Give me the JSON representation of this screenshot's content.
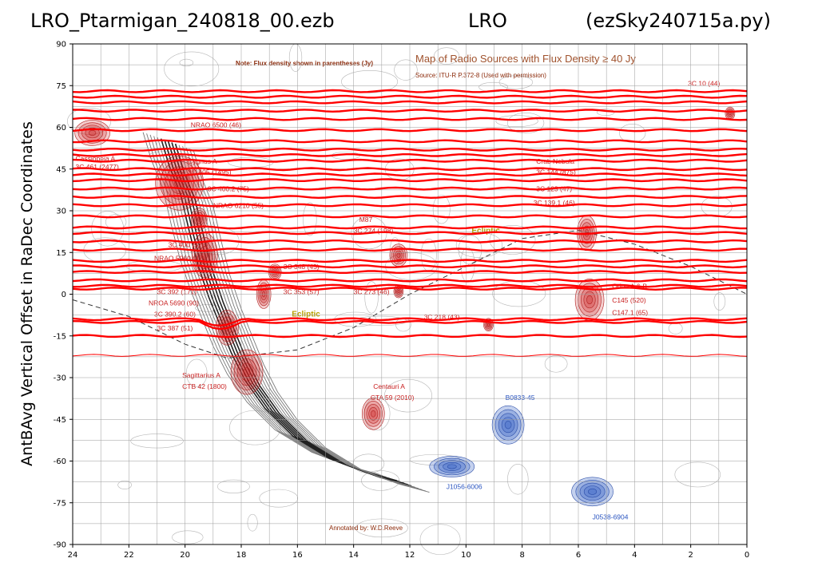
{
  "header": {
    "left_title": "LRO_Ptarmigan_240818_00.ezb",
    "center_title": "LRO",
    "right_title": "(ezSky240715a.py)"
  },
  "chart_data": {
    "type": "scatter",
    "title": "LRO_Ptarmigan_240818_00.ezb",
    "xlabel": "",
    "ylabel": "AntBAvg Vertical Offset in RaDec Coordinates",
    "xlim": [
      24,
      0
    ],
    "ylim": [
      -90,
      90
    ],
    "x_ticks": [
      "24",
      "22",
      "20",
      "18",
      "16",
      "14",
      "12",
      "10",
      "8",
      "6",
      "4",
      "2",
      "0"
    ],
    "y_ticks": [
      "90",
      "75",
      "60",
      "45",
      "30",
      "15",
      "0",
      "-15",
      "-30",
      "-45",
      "-60",
      "-75",
      "-90"
    ],
    "grid": true,
    "trace_color": "#ff0000",
    "trace_dec_values": [
      73,
      71,
      69,
      66,
      63,
      59,
      55,
      52,
      50,
      48,
      45,
      43,
      41,
      38,
      35,
      32,
      28,
      24,
      22,
      19,
      16,
      12,
      10,
      8,
      5,
      3,
      2,
      -9,
      -10,
      -15,
      -22
    ],
    "map": {
      "note": "Note: Flux density shown in parentheses (Jy)",
      "title": "Map of Radio Sources with Flux Density ≥ 40 Jy",
      "source": "Source: ITU-R P.372-8 (Used with permission)",
      "annotator": "Annotated by: W.D.Reeve",
      "ecliptic_label": "Ecliptic",
      "red_color": "#cc2020",
      "blue_color": "#3a66c8",
      "labels_red": [
        {
          "text": "NRAO 6500 (46)",
          "ra": 19.8,
          "dec": 60
        },
        {
          "text": "Cassiopeia A",
          "ra": 23.9,
          "dec": 48
        },
        {
          "text": "3C 461 (2477)",
          "ra": 23.9,
          "dec": 45
        },
        {
          "text": "Cygnus A",
          "ra": 19.9,
          "dec": 47
        },
        {
          "text": "3C 405 (1495)",
          "ra": 19.9,
          "dec": 43
        },
        {
          "text": "3C 400.2 (75)",
          "ra": 19.2,
          "dec": 37
        },
        {
          "text": "NRAO 6210 (55)",
          "ra": 19.0,
          "dec": 31
        },
        {
          "text": "3C 400 (576)",
          "ra": 20.6,
          "dec": 17
        },
        {
          "text": "NRAO 5960 (47)",
          "ra": 21.1,
          "dec": 12
        },
        {
          "text": "3C 348 (45)",
          "ra": 16.5,
          "dec": 9
        },
        {
          "text": "3C 392 (171)",
          "ra": 21.0,
          "dec": 0
        },
        {
          "text": "3C 353 (57)",
          "ra": 16.5,
          "dec": 0
        },
        {
          "text": "3C 273 (46)",
          "ra": 14.0,
          "dec": 0
        },
        {
          "text": "NROA 5690 (90)",
          "ra": 21.3,
          "dec": -4
        },
        {
          "text": "3C 390.2 (60)",
          "ra": 21.1,
          "dec": -8
        },
        {
          "text": "3C 387 (51)",
          "ra": 21.0,
          "dec": -13
        },
        {
          "text": "M87",
          "ra": 13.8,
          "dec": 26
        },
        {
          "text": "3C 274 (198)",
          "ra": 14.0,
          "dec": 22
        },
        {
          "text": "3C 218 (43)",
          "ra": 11.5,
          "dec": -9
        },
        {
          "text": "Crab Nebula",
          "ra": 7.5,
          "dec": 47
        },
        {
          "text": "3C 144 (875)",
          "ra": 7.5,
          "dec": 43
        },
        {
          "text": "3C 123 (47)",
          "ra": 7.5,
          "dec": 37
        },
        {
          "text": "3C 139.1 (46)",
          "ra": 7.6,
          "dec": 32
        },
        {
          "text": "3C 10 (44)",
          "ra": 2.1,
          "dec": 75
        },
        {
          "text": "Orion A & B",
          "ra": 4.8,
          "dec": 2
        },
        {
          "text": "C145 (520)",
          "ra": 4.8,
          "dec": -3
        },
        {
          "text": "C147.1 (65)",
          "ra": 4.8,
          "dec": -7.5
        },
        {
          "text": "Sagittarius A",
          "ra": 20.1,
          "dec": -30
        },
        {
          "text": "CTB 42 (1800)",
          "ra": 20.1,
          "dec": -34
        },
        {
          "text": "Centauri A",
          "ra": 13.3,
          "dec": -34
        },
        {
          "text": "CTA 59 (2010)",
          "ra": 13.4,
          "dec": -38
        }
      ],
      "labels_blue": [
        {
          "text": "B0833-45",
          "ra": 8.6,
          "dec": -38
        },
        {
          "text": "J1056-6006",
          "ra": 10.7,
          "dec": -70
        },
        {
          "text": "J0538-6904",
          "ra": 5.5,
          "dec": -81
        }
      ]
    }
  }
}
